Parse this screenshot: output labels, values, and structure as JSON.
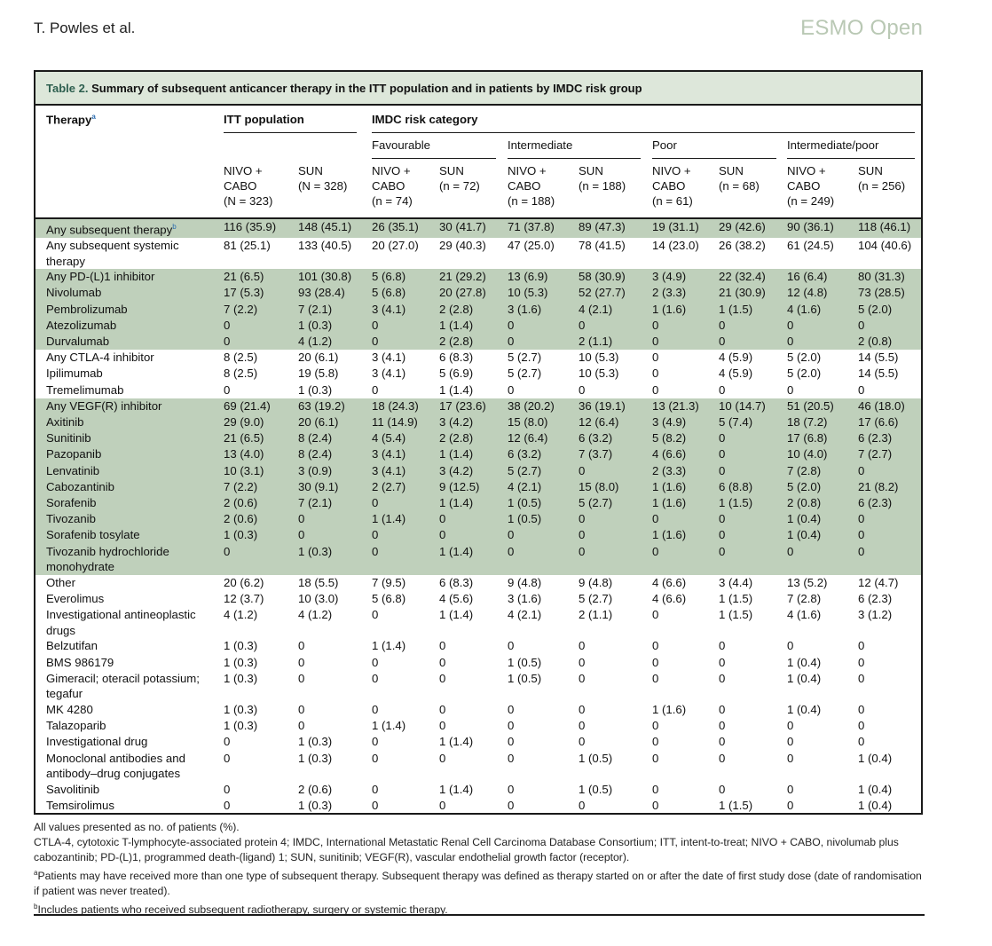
{
  "header": {
    "left": "T. Powles et al.",
    "right": "ESMO Open"
  },
  "table": {
    "caption_label": "Table 2.",
    "caption_text": "Summary of subsequent anticancer therapy in the ITT population and in patients by IMDC risk group",
    "therapy_col": "Therapy",
    "therapy_sup": "a",
    "group1": "ITT population",
    "group2": "IMDC risk category",
    "subgroups": [
      "Favourable",
      "Intermediate",
      "Poor",
      "Intermediate/poor"
    ],
    "columns": [
      [
        "NIVO +",
        "CABO",
        "(N = 323)"
      ],
      [
        "SUN",
        "(N = 328)",
        ""
      ],
      [
        "NIVO +",
        "CABO",
        "(n = 74)"
      ],
      [
        "SUN",
        "(n = 72)",
        ""
      ],
      [
        "NIVO +",
        "CABO",
        "(n = 188)"
      ],
      [
        "SUN",
        "(n = 188)",
        ""
      ],
      [
        "NIVO +",
        "CABO",
        "(n = 61)"
      ],
      [
        "SUN",
        "(n = 68)",
        ""
      ],
      [
        "NIVO +",
        "CABO",
        "(n = 249)"
      ],
      [
        "SUN",
        "(n = 256)",
        ""
      ]
    ],
    "rows": [
      {
        "label": "Any subsequent therapy",
        "sup": "b",
        "level": 0,
        "shade": true,
        "values": [
          "116 (35.9)",
          "148 (45.1)",
          "26 (35.1)",
          "30 (41.7)",
          "71 (37.8)",
          "89 (47.3)",
          "19 (31.1)",
          "29 (42.6)",
          "90 (36.1)",
          "118 (46.1)"
        ]
      },
      {
        "label": "Any subsequent systemic therapy",
        "level": 0,
        "shade": false,
        "values": [
          "81 (25.1)",
          "133 (40.5)",
          "20 (27.0)",
          "29 (40.3)",
          "47 (25.0)",
          "78 (41.5)",
          "14 (23.0)",
          "26 (38.2)",
          "61 (24.5)",
          "104 (40.6)"
        ]
      },
      {
        "label": "Any PD-(L)1 inhibitor",
        "level": 0,
        "shade": true,
        "values": [
          "21 (6.5)",
          "101 (30.8)",
          "5 (6.8)",
          "21 (29.2)",
          "13 (6.9)",
          "58 (30.9)",
          "3 (4.9)",
          "22 (32.4)",
          "16 (6.4)",
          "80 (31.3)"
        ]
      },
      {
        "label": "Nivolumab",
        "level": 1,
        "shade": true,
        "values": [
          "17 (5.3)",
          "93 (28.4)",
          "5 (6.8)",
          "20 (27.8)",
          "10 (5.3)",
          "52 (27.7)",
          "2 (3.3)",
          "21 (30.9)",
          "12 (4.8)",
          "73 (28.5)"
        ]
      },
      {
        "label": "Pembrolizumab",
        "level": 1,
        "shade": true,
        "values": [
          "7 (2.2)",
          "7 (2.1)",
          "3 (4.1)",
          "2 (2.8)",
          "3 (1.6)",
          "4 (2.1)",
          "1 (1.6)",
          "1 (1.5)",
          "4 (1.6)",
          "5 (2.0)"
        ]
      },
      {
        "label": "Atezolizumab",
        "level": 1,
        "shade": true,
        "values": [
          "0",
          "1 (0.3)",
          "0",
          "1 (1.4)",
          "0",
          "0",
          "0",
          "0",
          "0",
          "0"
        ]
      },
      {
        "label": "Durvalumab",
        "level": 1,
        "shade": true,
        "values": [
          "0",
          "4 (1.2)",
          "0",
          "2 (2.8)",
          "0",
          "2 (1.1)",
          "0",
          "0",
          "0",
          "2 (0.8)"
        ]
      },
      {
        "label": "Any CTLA-4 inhibitor",
        "level": 0,
        "shade": false,
        "values": [
          "8 (2.5)",
          "20 (6.1)",
          "3 (4.1)",
          "6 (8.3)",
          "5 (2.7)",
          "10 (5.3)",
          "0",
          "4 (5.9)",
          "5 (2.0)",
          "14 (5.5)"
        ]
      },
      {
        "label": "Ipilimumab",
        "level": 1,
        "shade": false,
        "values": [
          "8 (2.5)",
          "19 (5.8)",
          "3 (4.1)",
          "5 (6.9)",
          "5 (2.7)",
          "10 (5.3)",
          "0",
          "4 (5.9)",
          "5 (2.0)",
          "14 (5.5)"
        ]
      },
      {
        "label": "Tremelimumab",
        "level": 1,
        "shade": false,
        "values": [
          "0",
          "1 (0.3)",
          "0",
          "1 (1.4)",
          "0",
          "0",
          "0",
          "0",
          "0",
          "0"
        ]
      },
      {
        "label": "Any VEGF(R) inhibitor",
        "level": 0,
        "shade": true,
        "values": [
          "69 (21.4)",
          "63 (19.2)",
          "18 (24.3)",
          "17 (23.6)",
          "38 (20.2)",
          "36 (19.1)",
          "13 (21.3)",
          "10 (14.7)",
          "51 (20.5)",
          "46 (18.0)"
        ]
      },
      {
        "label": "Axitinib",
        "level": 1,
        "shade": true,
        "values": [
          "29 (9.0)",
          "20 (6.1)",
          "11 (14.9)",
          "3 (4.2)",
          "15 (8.0)",
          "12 (6.4)",
          "3 (4.9)",
          "5 (7.4)",
          "18 (7.2)",
          "17 (6.6)"
        ]
      },
      {
        "label": "Sunitinib",
        "level": 1,
        "shade": true,
        "values": [
          "21 (6.5)",
          "8 (2.4)",
          "4 (5.4)",
          "2 (2.8)",
          "12 (6.4)",
          "6 (3.2)",
          "5 (8.2)",
          "0",
          "17 (6.8)",
          "6 (2.3)"
        ]
      },
      {
        "label": "Pazopanib",
        "level": 1,
        "shade": true,
        "values": [
          "13 (4.0)",
          "8 (2.4)",
          "3 (4.1)",
          "1 (1.4)",
          "6 (3.2)",
          "7 (3.7)",
          "4 (6.6)",
          "0",
          "10 (4.0)",
          "7 (2.7)"
        ]
      },
      {
        "label": "Lenvatinib",
        "level": 1,
        "shade": true,
        "values": [
          "10 (3.1)",
          "3 (0.9)",
          "3 (4.1)",
          "3 (4.2)",
          "5 (2.7)",
          "0",
          "2 (3.3)",
          "0",
          "7 (2.8)",
          "0"
        ]
      },
      {
        "label": "Cabozantinib",
        "level": 1,
        "shade": true,
        "values": [
          "7 (2.2)",
          "30 (9.1)",
          "2 (2.7)",
          "9 (12.5)",
          "4 (2.1)",
          "15 (8.0)",
          "1 (1.6)",
          "6 (8.8)",
          "5 (2.0)",
          "21 (8.2)"
        ]
      },
      {
        "label": "Sorafenib",
        "level": 1,
        "shade": true,
        "values": [
          "2 (0.6)",
          "7 (2.1)",
          "0",
          "1 (1.4)",
          "1 (0.5)",
          "5 (2.7)",
          "1 (1.6)",
          "1 (1.5)",
          "2 (0.8)",
          "6 (2.3)"
        ]
      },
      {
        "label": "Tivozanib",
        "level": 1,
        "shade": true,
        "values": [
          "2 (0.6)",
          "0",
          "1 (1.4)",
          "0",
          "1 (0.5)",
          "0",
          "0",
          "0",
          "1 (0.4)",
          "0"
        ]
      },
      {
        "label": "Sorafenib tosylate",
        "level": 1,
        "shade": true,
        "values": [
          "1 (0.3)",
          "0",
          "0",
          "0",
          "0",
          "0",
          "1 (1.6)",
          "0",
          "1 (0.4)",
          "0"
        ]
      },
      {
        "label": "Tivozanib hydrochloride monohydrate",
        "level": 1,
        "shade": true,
        "values": [
          "0",
          "1 (0.3)",
          "0",
          "1 (1.4)",
          "0",
          "0",
          "0",
          "0",
          "0",
          "0"
        ]
      },
      {
        "label": "Other",
        "level": 0,
        "shade": false,
        "values": [
          "20 (6.2)",
          "18 (5.5)",
          "7 (9.5)",
          "6 (8.3)",
          "9 (4.8)",
          "9 (4.8)",
          "4 (6.6)",
          "3 (4.4)",
          "13 (5.2)",
          "12 (4.7)"
        ]
      },
      {
        "label": "Everolimus",
        "level": 1,
        "shade": false,
        "values": [
          "12 (3.7)",
          "10 (3.0)",
          "5 (6.8)",
          "4 (5.6)",
          "3 (1.6)",
          "5 (2.7)",
          "4 (6.6)",
          "1 (1.5)",
          "7 (2.8)",
          "6 (2.3)"
        ]
      },
      {
        "label": "Investigational antineoplastic drugs",
        "level": 1,
        "shade": false,
        "values": [
          "4 (1.2)",
          "4 (1.2)",
          "0",
          "1 (1.4)",
          "4 (2.1)",
          "2 (1.1)",
          "0",
          "1 (1.5)",
          "4 (1.6)",
          "3 (1.2)"
        ]
      },
      {
        "label": "Belzutifan",
        "level": 1,
        "shade": false,
        "values": [
          "1 (0.3)",
          "0",
          "1 (1.4)",
          "0",
          "0",
          "0",
          "0",
          "0",
          "0",
          "0"
        ]
      },
      {
        "label": "BMS 986179",
        "level": 1,
        "shade": false,
        "values": [
          "1 (0.3)",
          "0",
          "0",
          "0",
          "1 (0.5)",
          "0",
          "0",
          "0",
          "1 (0.4)",
          "0"
        ]
      },
      {
        "label": "Gimeracil; oteracil potassium; tegafur",
        "level": 1,
        "shade": false,
        "values": [
          "1 (0.3)",
          "0",
          "0",
          "0",
          "1 (0.5)",
          "0",
          "0",
          "0",
          "1 (0.4)",
          "0"
        ]
      },
      {
        "label": "MK 4280",
        "level": 1,
        "shade": false,
        "values": [
          "1 (0.3)",
          "0",
          "0",
          "0",
          "0",
          "0",
          "1 (1.6)",
          "0",
          "1 (0.4)",
          "0"
        ]
      },
      {
        "label": "Talazoparib",
        "level": 1,
        "shade": false,
        "values": [
          "1 (0.3)",
          "0",
          "1 (1.4)",
          "0",
          "0",
          "0",
          "0",
          "0",
          "0",
          "0"
        ]
      },
      {
        "label": "Investigational drug",
        "level": 1,
        "shade": false,
        "values": [
          "0",
          "1 (0.3)",
          "0",
          "1 (1.4)",
          "0",
          "0",
          "0",
          "0",
          "0",
          "0"
        ]
      },
      {
        "label": "Monoclonal antibodies and antibody–drug conjugates",
        "level": 1,
        "shade": false,
        "values": [
          "0",
          "1 (0.3)",
          "0",
          "0",
          "0",
          "1 (0.5)",
          "0",
          "0",
          "0",
          "1 (0.4)"
        ]
      },
      {
        "label": "Savolitinib",
        "level": 1,
        "shade": false,
        "values": [
          "0",
          "2 (0.6)",
          "0",
          "1 (1.4)",
          "0",
          "1 (0.5)",
          "0",
          "0",
          "0",
          "1 (0.4)"
        ]
      },
      {
        "label": "Temsirolimus",
        "level": 1,
        "shade": false,
        "values": [
          "0",
          "1 (0.3)",
          "0",
          "0",
          "0",
          "0",
          "0",
          "1 (1.5)",
          "0",
          "1 (0.4)"
        ]
      }
    ]
  },
  "footnotes": {
    "line1": "All values presented as no. of patients (%).",
    "line2": "CTLA-4, cytotoxic T-lymphocyte-associated protein 4; IMDC, International Metastatic Renal Cell Carcinoma Database Consortium; ITT, intent-to-treat; NIVO + CABO, nivolumab plus cabozantinib; PD-(L)1, programmed death-(ligand) 1; SUN, sunitinib; VEGF(R), vascular endothelial growth factor (receptor).",
    "a_mark": "a",
    "a_text": "Patients may have received more than one type of subsequent therapy. Subsequent therapy was defined as therapy started on or after the date of first study dose (date of randomisation if patient was never treated).",
    "b_mark": "b",
    "b_text": "Includes patients who received subsequent radiotherapy, surgery or systemic therapy."
  }
}
